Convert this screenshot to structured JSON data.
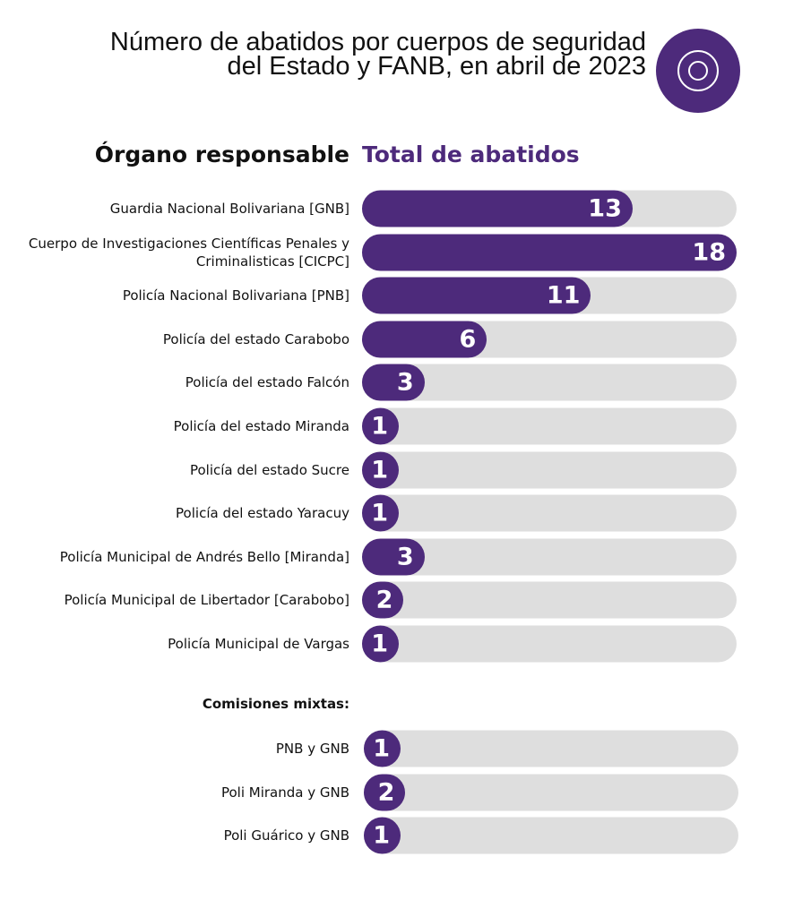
{
  "chart_data": {
    "type": "bar",
    "orientation": "horizontal",
    "title": "Número de abatidos por cuerpos de seguridad del Estado y FANB, en abril de 2023",
    "xlabel": "Total de abatidos",
    "ylabel": "Órgano responsable",
    "xlim": [
      0,
      18
    ],
    "color": "#4d2a7b",
    "track_color": "#dedede",
    "groups": [
      {
        "name": "",
        "categories": [
          "Guardia Nacional Bolivariana [GNB]",
          "Cuerpo de Investigaciones Científicas Penales y Criminalisticas [CICPC]",
          "Policía Nacional Bolivariana [PNB]",
          "Policía del estado Carabobo",
          "Policía del estado Falcón",
          "Policía del estado Miranda",
          "Policía del estado Sucre",
          "Policía del estado Yaracuy",
          "Policía Municipal de Andrés Bello [Miranda]",
          "Policía Municipal de Libertador [Carabobo]",
          "Policía Municipal de Vargas"
        ],
        "values": [
          13,
          18,
          11,
          6,
          3,
          1,
          1,
          1,
          3,
          2,
          1
        ]
      },
      {
        "name": "Comisiones mixtas:",
        "categories": [
          "PNB y GNB",
          "Poli Miranda y GNB",
          "Poli Guárico y GNB"
        ],
        "values": [
          1,
          2,
          1
        ]
      }
    ]
  }
}
